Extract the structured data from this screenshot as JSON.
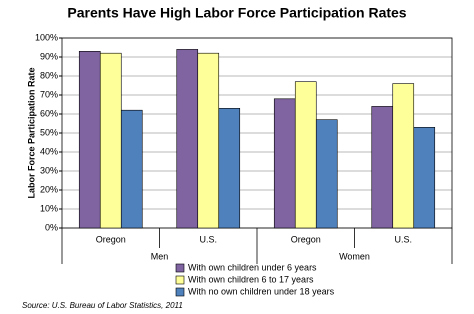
{
  "chart_data": {
    "type": "bar",
    "title": "Parents Have High Labor Force Participation Rates",
    "y_label": "Labor Force Participation Rate",
    "categories": [
      "Oregon",
      "U.S.",
      "Oregon",
      "U.S."
    ],
    "groups": [
      "Men",
      "Women"
    ],
    "series": [
      {
        "name": "With own children under 6 years",
        "color": "#8064a2",
        "values": [
          93,
          94,
          68,
          64
        ]
      },
      {
        "name": "With own children 6 to 17 years",
        "color": "#ffff99",
        "values": [
          92,
          92,
          77,
          76
        ]
      },
      {
        "name": "With no own children under 18 years",
        "color": "#4f81bd",
        "values": [
          62,
          63,
          57,
          53
        ]
      }
    ],
    "ylim": [
      0,
      100
    ],
    "yticks": [
      {
        "value": 0,
        "label": "0%"
      },
      {
        "value": 10,
        "label": "10%"
      },
      {
        "value": 20,
        "label": "20%"
      },
      {
        "value": 30,
        "label": "30%"
      },
      {
        "value": 40,
        "label": "40%"
      },
      {
        "value": 50,
        "label": "50%"
      },
      {
        "value": 60,
        "label": "60%"
      },
      {
        "value": 70,
        "label": "70%"
      },
      {
        "value": 80,
        "label": "80%"
      },
      {
        "value": 90,
        "label": "90%"
      },
      {
        "value": 100,
        "label": "100%"
      }
    ],
    "grid": true,
    "legend": "bottom",
    "source": "Source: U.S. Bureau of Labor Statistics, 2011"
  }
}
